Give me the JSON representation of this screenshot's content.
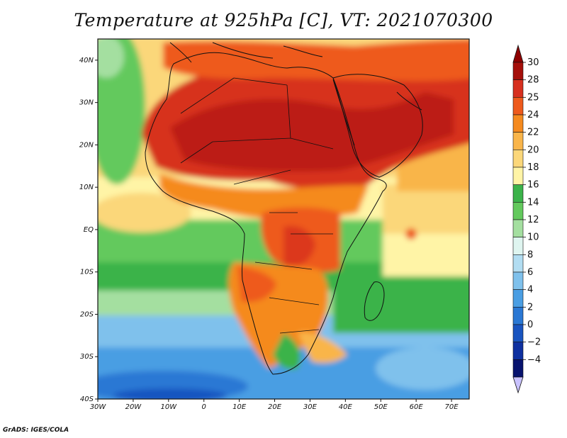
{
  "title": "Temperature at 925hPa [C], VT: 2021070300",
  "credit": "GrADS: IGES/COLA",
  "map": {
    "variable": "Temperature at 925hPa",
    "units": "C",
    "valid_time": "2021070300",
    "lon_range": [
      -30,
      75
    ],
    "lat_range": [
      -40,
      45
    ],
    "lat_ticks": [
      {
        "value": 40,
        "label": "40N"
      },
      {
        "value": 30,
        "label": "30N"
      },
      {
        "value": 20,
        "label": "20N"
      },
      {
        "value": 10,
        "label": "10N"
      },
      {
        "value": 0,
        "label": "EQ"
      },
      {
        "value": -10,
        "label": "10S"
      },
      {
        "value": -20,
        "label": "20S"
      },
      {
        "value": -30,
        "label": "30S"
      },
      {
        "value": -40,
        "label": "40S"
      }
    ],
    "lon_ticks": [
      {
        "value": -30,
        "label": "30W"
      },
      {
        "value": -20,
        "label": "20W"
      },
      {
        "value": -10,
        "label": "10W"
      },
      {
        "value": 0,
        "label": "0"
      },
      {
        "value": 10,
        "label": "10E"
      },
      {
        "value": 20,
        "label": "20E"
      },
      {
        "value": 30,
        "label": "30E"
      },
      {
        "value": 40,
        "label": "40E"
      },
      {
        "value": 50,
        "label": "50E"
      },
      {
        "value": 60,
        "label": "60E"
      },
      {
        "value": 70,
        "label": "70E"
      }
    ]
  },
  "colorbar": {
    "levels": [
      {
        "label": "30",
        "color": "#a50f0a"
      },
      {
        "label": "28",
        "color": "#d7301f"
      },
      {
        "label": "25",
        "color": "#ee5a1c"
      },
      {
        "label": "24",
        "color": "#f58a1f"
      },
      {
        "label": "22",
        "color": "#f9b54a"
      },
      {
        "label": "20",
        "color": "#fbd77a"
      },
      {
        "label": "18",
        "color": "#fff4a6"
      },
      {
        "label": "16",
        "color": "#3bb34a"
      },
      {
        "label": "14",
        "color": "#63c95d"
      },
      {
        "label": "12",
        "color": "#a4dfa0"
      },
      {
        "label": "10",
        "color": "#dff5f0"
      },
      {
        "label": "8",
        "color": "#b2ddf2"
      },
      {
        "label": "6",
        "color": "#7fc1ec"
      },
      {
        "label": "4",
        "color": "#4a9ee3"
      },
      {
        "label": "2",
        "color": "#2a78d4"
      },
      {
        "label": "0",
        "color": "#1954c0"
      },
      {
        "label": "−2",
        "color": "#0e30a0"
      },
      {
        "label": "−4",
        "color": "#08136e"
      }
    ],
    "over_color": "#8e0000",
    "under_color": "#c9c2ff"
  },
  "colors": {
    "hot": "#d7301f",
    "warm": "#f58a1f",
    "mild": "#fbd77a",
    "cool_green": "#63c95d",
    "cold_blue": "#4a9ee3"
  }
}
